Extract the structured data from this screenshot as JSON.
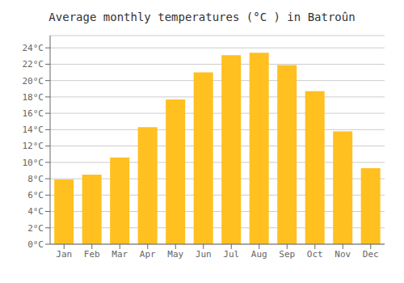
{
  "chart_data": {
    "type": "bar",
    "title": "Average monthly temperatures (°C ) in Batroûn",
    "categories": [
      "Jan",
      "Feb",
      "Mar",
      "Apr",
      "May",
      "Jun",
      "Jul",
      "Aug",
      "Sep",
      "Oct",
      "Nov",
      "Dec"
    ],
    "values": [
      7.9,
      8.5,
      10.6,
      14.3,
      17.7,
      21.0,
      23.1,
      23.4,
      21.9,
      18.7,
      13.8,
      9.3
    ],
    "color": "#FFC020",
    "ylim": [
      0,
      25.5
    ],
    "yticks": [
      {
        "value": 0,
        "label": "0°C"
      },
      {
        "value": 2,
        "label": "2°C"
      },
      {
        "value": 4,
        "label": "4°C"
      },
      {
        "value": 6,
        "label": "6°C"
      },
      {
        "value": 8,
        "label": "8°C"
      },
      {
        "value": 10,
        "label": "10°C"
      },
      {
        "value": 12,
        "label": "12°C"
      },
      {
        "value": 14,
        "label": "14°C"
      },
      {
        "value": 16,
        "label": "16°C"
      },
      {
        "value": 18,
        "label": "18°C"
      },
      {
        "value": 20,
        "label": "20°C"
      },
      {
        "value": 22,
        "label": "22°C"
      },
      {
        "value": 24,
        "label": "24°C"
      }
    ],
    "grid": true
  }
}
